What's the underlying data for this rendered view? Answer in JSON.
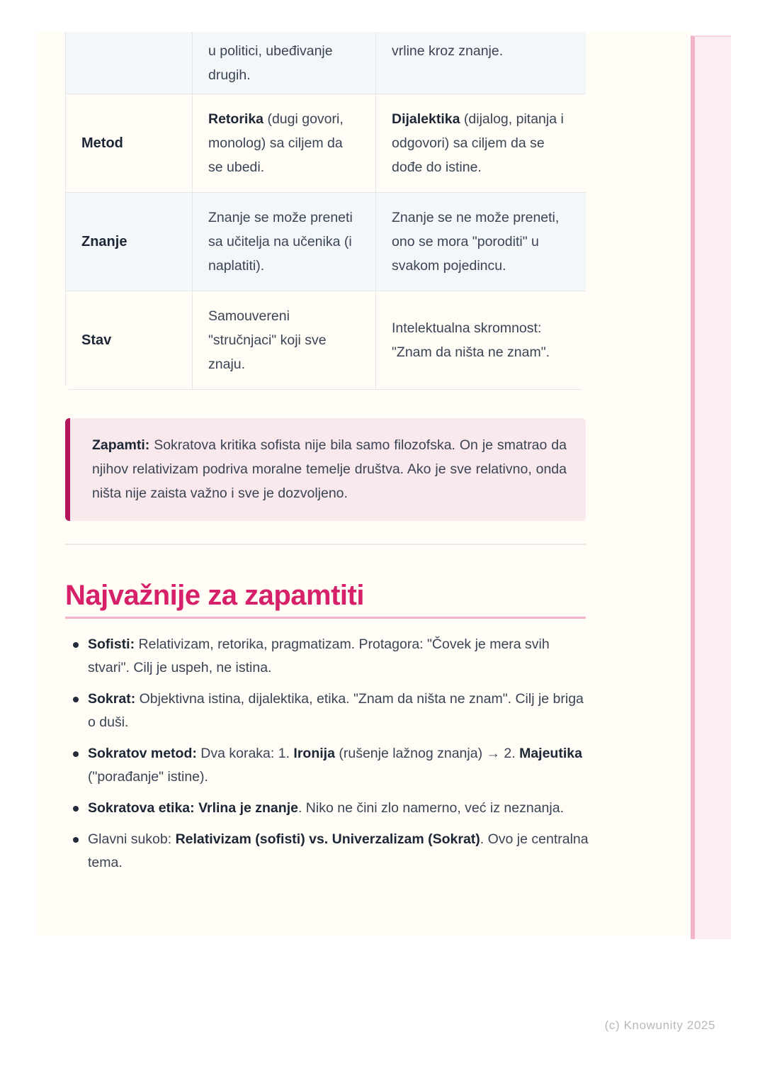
{
  "colors": {
    "accent": "#d62069",
    "callout_border": "#b2175c",
    "callout_bg": "#f9e8ec",
    "page_bg": "#fffdf5",
    "stripe_bg": "#f4f7fa",
    "table_border": "#e4e7ea",
    "heading_rule": "#f3b3cb",
    "divider": "#e8e9eb",
    "next_page_bg": "#fdedf3",
    "next_page_edge": "#f2b3ca",
    "text": "#3a4454",
    "text_strong": "#1d2635",
    "footer_color": "#b5b9bd"
  },
  "table": {
    "rows": [
      {
        "label": "",
        "partial": true,
        "striped": true,
        "cells": [
          [
            {
              "t": "u politici, ubeđivanje drugih."
            }
          ],
          [
            {
              "t": "vrline kroz znanje."
            }
          ]
        ]
      },
      {
        "label": "Metod",
        "partial": false,
        "striped": false,
        "cells": [
          [
            {
              "t": "Retorika",
              "b": true
            },
            {
              "t": " (dugi govori, monolog) sa ciljem da se ubedi."
            }
          ],
          [
            {
              "t": "Dijalektika",
              "b": true
            },
            {
              "t": " (dijalog, pitanja i odgovori) sa ciljem da se dođe do istine."
            }
          ]
        ]
      },
      {
        "label": "Znanje",
        "partial": false,
        "striped": true,
        "cells": [
          [
            {
              "t": "Znanje se može preneti sa učitelja na učenika (i naplatiti)."
            }
          ],
          [
            {
              "t": "Znanje se ne može preneti, ono se mora \"poroditi\" u svakom pojedincu."
            }
          ]
        ]
      },
      {
        "label": "Stav",
        "partial": false,
        "striped": false,
        "cells": [
          [
            {
              "t": "Samouvereni \"stručnjaci\" koji sve znaju."
            }
          ],
          [
            {
              "t": "Intelektualna skromnost: \"Znam da ništa ne znam\"."
            }
          ]
        ]
      }
    ]
  },
  "callout": {
    "segments": [
      {
        "t": "Zapamti:",
        "b": true
      },
      {
        "t": " Sokratova kritika sofista nije bila samo filozofska. On je smatrao da njihov relativizam podriva moralne temelje društva. Ako je sve relativno, onda ništa nije zaista važno i sve je dozvoljeno."
      }
    ]
  },
  "section": {
    "title": "Najvažnije za zapamtiti"
  },
  "list": {
    "items": [
      [
        {
          "t": "Sofisti:",
          "b": true
        },
        {
          "t": " Relativizam, retorika, pragmatizam. Protagora: \"Čovek je mera svih stvari\". Cilj je uspeh, ne istina."
        }
      ],
      [
        {
          "t": "Sokrat:",
          "b": true
        },
        {
          "t": " Objektivna istina, dijalektika, etika. \"Znam da ništa ne znam\". Cilj je briga o duši."
        }
      ],
      [
        {
          "t": "Sokratov metod:",
          "b": true
        },
        {
          "t": " Dva koraka: 1. "
        },
        {
          "t": "Ironija",
          "b": true
        },
        {
          "t": " (rušenje lažnog znanja) → 2. "
        },
        {
          "t": "Majeutika",
          "b": true
        },
        {
          "t": " (\"porađanje\" istine)."
        }
      ],
      [
        {
          "t": "Sokratova etika: Vrlina je znanje",
          "b": true
        },
        {
          "t": ". Niko ne čini zlo namerno, već iz neznanja."
        }
      ],
      [
        {
          "t": "Glavni sukob: "
        },
        {
          "t": "Relativizam (sofisti) vs. Univerzalizam (Sokrat)",
          "b": true
        },
        {
          "t": ". Ovo je centralna tema."
        }
      ]
    ]
  },
  "page": {
    "footer": "(c) Knowunity 2025"
  }
}
